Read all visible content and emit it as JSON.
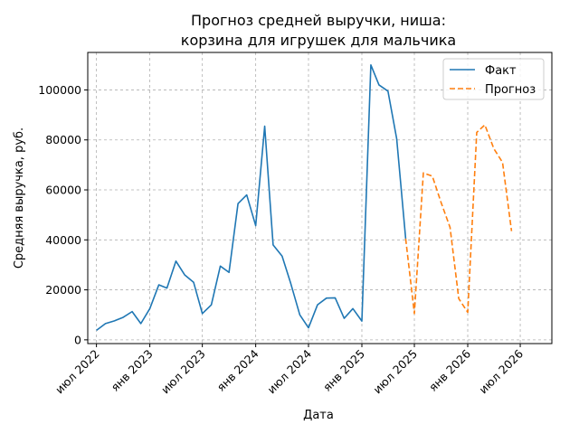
{
  "chart_data": {
    "type": "line",
    "title": [
      "Прогноз средней выручки, ниша:",
      "корзина для игрушек для мальчика"
    ],
    "xlabel": "Дата",
    "ylabel": "Средняя выручка, руб.",
    "ylim": [
      -1500,
      115000
    ],
    "xlim": [
      "2022-06-01",
      "2026-10-18"
    ],
    "grid": true,
    "legend_position": "top-right",
    "x_ticks": [
      {
        "date": "2022-07-01",
        "label": "июл 2022"
      },
      {
        "date": "2023-01-01",
        "label": "янв 2023"
      },
      {
        "date": "2023-07-01",
        "label": "июл 2023"
      },
      {
        "date": "2024-01-01",
        "label": "янв 2024"
      },
      {
        "date": "2024-07-01",
        "label": "июл 2024"
      },
      {
        "date": "2025-01-01",
        "label": "янв 2025"
      },
      {
        "date": "2025-07-01",
        "label": "июл 2025"
      },
      {
        "date": "2026-01-01",
        "label": "янв 2026"
      },
      {
        "date": "2026-07-01",
        "label": "июл 2026"
      }
    ],
    "y_ticks": [
      {
        "value": 0,
        "label": "0"
      },
      {
        "value": 20000,
        "label": "20000"
      },
      {
        "value": 40000,
        "label": "40000"
      },
      {
        "value": 60000,
        "label": "60000"
      },
      {
        "value": 80000,
        "label": "80000"
      },
      {
        "value": 100000,
        "label": "100000"
      }
    ],
    "series": [
      {
        "name": "Факт",
        "color": "#1f77b4",
        "style": "solid",
        "points": [
          {
            "x": "2022-07-01",
            "y": 3800
          },
          {
            "x": "2022-08-01",
            "y": 6500
          },
          {
            "x": "2022-09-01",
            "y": 7600
          },
          {
            "x": "2022-10-01",
            "y": 9000
          },
          {
            "x": "2022-11-01",
            "y": 11300
          },
          {
            "x": "2022-12-01",
            "y": 6500
          },
          {
            "x": "2023-01-01",
            "y": 12500
          },
          {
            "x": "2023-02-01",
            "y": 22000
          },
          {
            "x": "2023-03-01",
            "y": 20700
          },
          {
            "x": "2023-04-01",
            "y": 31500
          },
          {
            "x": "2023-05-01",
            "y": 26000
          },
          {
            "x": "2023-06-01",
            "y": 23000
          },
          {
            "x": "2023-07-01",
            "y": 10500
          },
          {
            "x": "2023-08-01",
            "y": 14000
          },
          {
            "x": "2023-09-01",
            "y": 29500
          },
          {
            "x": "2023-10-01",
            "y": 27000
          },
          {
            "x": "2023-11-01",
            "y": 54500
          },
          {
            "x": "2023-12-01",
            "y": 58000
          },
          {
            "x": "2024-01-01",
            "y": 45700
          },
          {
            "x": "2024-02-01",
            "y": 85500
          },
          {
            "x": "2024-03-01",
            "y": 38000
          },
          {
            "x": "2024-04-01",
            "y": 33500
          },
          {
            "x": "2024-05-01",
            "y": 22500
          },
          {
            "x": "2024-06-01",
            "y": 10000
          },
          {
            "x": "2024-07-01",
            "y": 4800
          },
          {
            "x": "2024-08-01",
            "y": 14000
          },
          {
            "x": "2024-09-01",
            "y": 16700
          },
          {
            "x": "2024-10-01",
            "y": 16800
          },
          {
            "x": "2024-11-01",
            "y": 8600
          },
          {
            "x": "2024-12-01",
            "y": 12500
          },
          {
            "x": "2025-01-01",
            "y": 7500
          },
          {
            "x": "2025-02-01",
            "y": 110000
          },
          {
            "x": "2025-03-01",
            "y": 102000
          },
          {
            "x": "2025-04-01",
            "y": 99500
          },
          {
            "x": "2025-05-01",
            "y": 80500
          },
          {
            "x": "2025-06-01",
            "y": 40500
          }
        ]
      },
      {
        "name": "Прогноз",
        "color": "#ff7f0e",
        "style": "dashed",
        "points": [
          {
            "x": "2025-06-01",
            "y": 40500
          },
          {
            "x": "2025-07-01",
            "y": 10500
          },
          {
            "x": "2025-08-01",
            "y": 66800
          },
          {
            "x": "2025-09-01",
            "y": 65500
          },
          {
            "x": "2025-10-01",
            "y": 55000
          },
          {
            "x": "2025-11-01",
            "y": 45000
          },
          {
            "x": "2025-12-01",
            "y": 16500
          },
          {
            "x": "2026-01-01",
            "y": 11000
          },
          {
            "x": "2026-02-01",
            "y": 83000
          },
          {
            "x": "2026-03-01",
            "y": 86000
          },
          {
            "x": "2026-04-01",
            "y": 76500
          },
          {
            "x": "2026-05-01",
            "y": 71000
          },
          {
            "x": "2026-06-01",
            "y": 43500
          }
        ]
      }
    ]
  }
}
